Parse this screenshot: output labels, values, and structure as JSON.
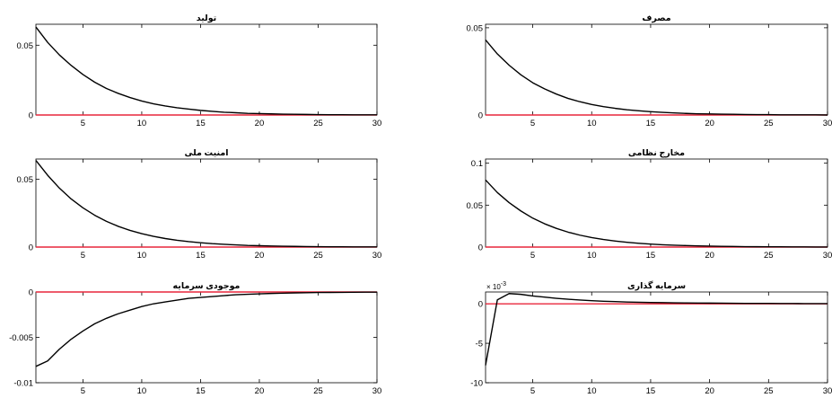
{
  "chart_data": [
    {
      "type": "line",
      "title": "تولید",
      "xlim": [
        1,
        30
      ],
      "ylim": [
        0,
        0.065
      ],
      "xticks": [
        5,
        10,
        15,
        20,
        25,
        30
      ],
      "yticks": [
        0,
        0.05
      ],
      "ytick_labels": [
        "0",
        "0.05"
      ],
      "x": [
        1,
        2,
        3,
        4,
        5,
        6,
        7,
        8,
        9,
        10,
        11,
        12,
        13,
        14,
        15,
        16,
        17,
        18,
        19,
        20,
        21,
        22,
        23,
        24,
        25,
        26,
        27,
        28,
        29,
        30
      ],
      "series": [
        {
          "values": [
            0.063,
            0.052,
            0.043,
            0.0355,
            0.029,
            0.0235,
            0.019,
            0.0155,
            0.0125,
            0.01,
            0.008,
            0.0065,
            0.0052,
            0.0042,
            0.0033,
            0.0026,
            0.002,
            0.0016,
            0.0012,
            0.001,
            0.0008,
            0.0006,
            0.0005,
            0.0004,
            0.0003,
            0.0002,
            0.0002,
            0.0001,
            0.0001,
            0.0001
          ],
          "color": "#000000"
        },
        {
          "values": [
            0,
            0,
            0,
            0,
            0,
            0,
            0,
            0,
            0,
            0,
            0,
            0,
            0,
            0,
            0,
            0,
            0,
            0,
            0,
            0,
            0,
            0,
            0,
            0,
            0,
            0,
            0,
            0,
            0,
            0
          ],
          "color": "#e8273c"
        }
      ]
    },
    {
      "type": "line",
      "title": "مصرف",
      "xlim": [
        1,
        30
      ],
      "ylim": [
        0,
        0.052
      ],
      "xticks": [
        5,
        10,
        15,
        20,
        25,
        30
      ],
      "yticks": [
        0,
        0.05
      ],
      "ytick_labels": [
        "0",
        "0.05"
      ],
      "x": [
        1,
        2,
        3,
        4,
        5,
        6,
        7,
        8,
        9,
        10,
        11,
        12,
        13,
        14,
        15,
        16,
        17,
        18,
        19,
        20,
        21,
        22,
        23,
        24,
        25,
        26,
        27,
        28,
        29,
        30
      ],
      "series": [
        {
          "values": [
            0.043,
            0.035,
            0.0285,
            0.023,
            0.0185,
            0.015,
            0.012,
            0.0095,
            0.0076,
            0.006,
            0.0048,
            0.0038,
            0.003,
            0.0024,
            0.0019,
            0.0015,
            0.0012,
            0.0009,
            0.0007,
            0.0006,
            0.0005,
            0.0004,
            0.0003,
            0.0002,
            0.0002,
            0.0001,
            0.0001,
            0.0001,
            0.0001,
            0.0
          ],
          "color": "#000000"
        },
        {
          "values": [
            0,
            0,
            0,
            0,
            0,
            0,
            0,
            0,
            0,
            0,
            0,
            0,
            0,
            0,
            0,
            0,
            0,
            0,
            0,
            0,
            0,
            0,
            0,
            0,
            0,
            0,
            0,
            0,
            0,
            0
          ],
          "color": "#e8273c"
        }
      ]
    },
    {
      "type": "line",
      "title": "امنیت ملی",
      "xlim": [
        1,
        30
      ],
      "ylim": [
        0,
        0.065
      ],
      "xticks": [
        5,
        10,
        15,
        20,
        25,
        30
      ],
      "yticks": [
        0,
        0.05
      ],
      "ytick_labels": [
        "0",
        "0.05"
      ],
      "x": [
        1,
        2,
        3,
        4,
        5,
        6,
        7,
        8,
        9,
        10,
        11,
        12,
        13,
        14,
        15,
        16,
        17,
        18,
        19,
        20,
        21,
        22,
        23,
        24,
        25,
        26,
        27,
        28,
        29,
        30
      ],
      "series": [
        {
          "values": [
            0.064,
            0.053,
            0.0435,
            0.0355,
            0.029,
            0.0235,
            0.019,
            0.0153,
            0.0123,
            0.0099,
            0.0079,
            0.0063,
            0.005,
            0.004,
            0.0032,
            0.0025,
            0.002,
            0.0016,
            0.0012,
            0.001,
            0.0008,
            0.0006,
            0.0005,
            0.0004,
            0.0003,
            0.0002,
            0.0002,
            0.0001,
            0.0001,
            0.0001
          ],
          "color": "#000000"
        },
        {
          "values": [
            0,
            0,
            0,
            0,
            0,
            0,
            0,
            0,
            0,
            0,
            0,
            0,
            0,
            0,
            0,
            0,
            0,
            0,
            0,
            0,
            0,
            0,
            0,
            0,
            0,
            0,
            0,
            0,
            0,
            0
          ],
          "color": "#e8273c"
        }
      ]
    },
    {
      "type": "line",
      "title": "مخارج نظامی",
      "xlim": [
        1,
        30
      ],
      "ylim": [
        0,
        0.105
      ],
      "xticks": [
        5,
        10,
        15,
        20,
        25,
        30
      ],
      "yticks": [
        0,
        0.05,
        0.1
      ],
      "ytick_labels": [
        "0",
        "0.05",
        "0.1"
      ],
      "x": [
        1,
        2,
        3,
        4,
        5,
        6,
        7,
        8,
        9,
        10,
        11,
        12,
        13,
        14,
        15,
        16,
        17,
        18,
        19,
        20,
        21,
        22,
        23,
        24,
        25,
        26,
        27,
        28,
        29,
        30
      ],
      "series": [
        {
          "values": [
            0.08,
            0.065,
            0.053,
            0.043,
            0.0345,
            0.0278,
            0.0223,
            0.0178,
            0.0142,
            0.0113,
            0.009,
            0.0072,
            0.0057,
            0.0045,
            0.0036,
            0.0028,
            0.0022,
            0.0018,
            0.0014,
            0.0011,
            0.0009,
            0.0007,
            0.0005,
            0.0004,
            0.0003,
            0.0003,
            0.0002,
            0.0002,
            0.0001,
            0.0001
          ],
          "color": "#000000"
        },
        {
          "values": [
            0,
            0,
            0,
            0,
            0,
            0,
            0,
            0,
            0,
            0,
            0,
            0,
            0,
            0,
            0,
            0,
            0,
            0,
            0,
            0,
            0,
            0,
            0,
            0,
            0,
            0,
            0,
            0,
            0,
            0
          ],
          "color": "#e8273c"
        }
      ]
    },
    {
      "type": "line",
      "title": "موجودی سرمایه",
      "xlim": [
        1,
        30
      ],
      "ylim": [
        -0.01,
        0
      ],
      "xticks": [
        5,
        10,
        15,
        20,
        25,
        30
      ],
      "yticks": [
        -0.01,
        -0.005,
        0
      ],
      "ytick_labels": [
        "-0.01",
        "-0.005",
        "0"
      ],
      "x": [
        1,
        2,
        3,
        4,
        5,
        6,
        7,
        8,
        9,
        10,
        11,
        12,
        13,
        14,
        15,
        16,
        17,
        18,
        19,
        20,
        21,
        22,
        23,
        24,
        25,
        26,
        27,
        28,
        29,
        30
      ],
      "series": [
        {
          "values": [
            -0.0082,
            -0.0076,
            -0.0063,
            -0.0052,
            -0.0043,
            -0.0035,
            -0.0029,
            -0.0024,
            -0.002,
            -0.0016,
            -0.0013,
            -0.0011,
            -0.0009,
            -0.0007,
            -0.0006,
            -0.0005,
            -0.0004,
            -0.0003,
            -0.00025,
            -0.0002,
            -0.00016,
            -0.00013,
            -0.0001,
            -8e-05,
            -6e-05,
            -5e-05,
            -4e-05,
            -3e-05,
            -2e-05,
            -2e-05
          ],
          "color": "#000000"
        },
        {
          "values": [
            0,
            0,
            0,
            0,
            0,
            0,
            0,
            0,
            0,
            0,
            0,
            0,
            0,
            0,
            0,
            0,
            0,
            0,
            0,
            0,
            0,
            0,
            0,
            0,
            0,
            0,
            0,
            0,
            0,
            0
          ],
          "color": "#e8273c"
        }
      ]
    },
    {
      "type": "line",
      "title": "سرمایه گذاری",
      "exponent_label": "10",
      "exponent_power": "-3",
      "xlim": [
        1,
        30
      ],
      "ylim": [
        -10,
        1.5
      ],
      "xticks": [
        5,
        10,
        15,
        20,
        25,
        30
      ],
      "yticks": [
        -10,
        -5,
        0
      ],
      "ytick_labels": [
        "-10",
        "-5",
        "0"
      ],
      "x": [
        1,
        2,
        3,
        4,
        5,
        6,
        7,
        8,
        9,
        10,
        11,
        12,
        13,
        14,
        15,
        16,
        17,
        18,
        19,
        20,
        21,
        22,
        23,
        24,
        25,
        26,
        27,
        28,
        29,
        30
      ],
      "series": [
        {
          "values": [
            -7.8,
            0.5,
            1.3,
            1.2,
            1.0,
            0.85,
            0.7,
            0.58,
            0.48,
            0.4,
            0.33,
            0.28,
            0.23,
            0.2,
            0.17,
            0.15,
            0.13,
            0.11,
            0.1,
            0.09,
            0.08,
            0.07,
            0.06,
            0.05,
            0.05,
            0.04,
            0.04,
            0.03,
            0.03,
            0.03
          ],
          "color": "#000000"
        },
        {
          "values": [
            0,
            0,
            0,
            0,
            0,
            0,
            0,
            0,
            0,
            0,
            0,
            0,
            0,
            0,
            0,
            0,
            0,
            0,
            0,
            0,
            0,
            0,
            0,
            0,
            0,
            0,
            0,
            0,
            0,
            0
          ],
          "color": "#e8273c"
        }
      ]
    }
  ]
}
